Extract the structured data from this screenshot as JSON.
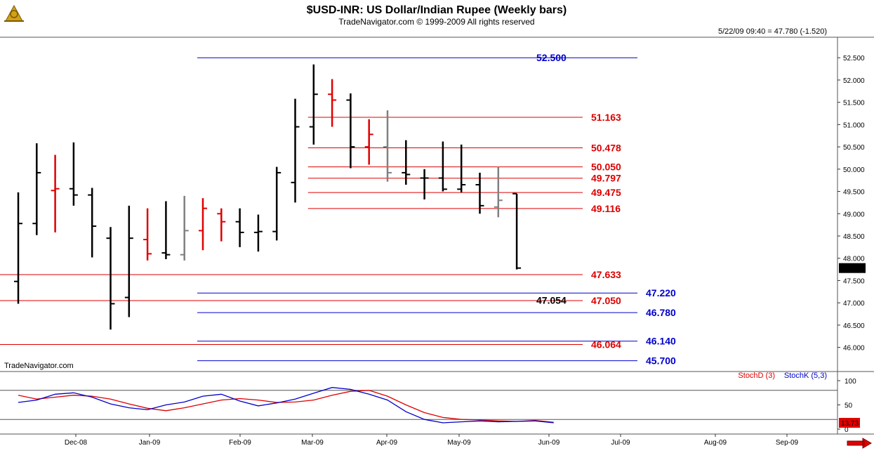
{
  "header": {
    "title": "$USD-INR:  US Dollar/Indian Rupee  (Weekly bars)",
    "subtitle": "TradeNavigator.com © 1999-2009 All rights reserved",
    "last_quote": "5/22/09 09:40 = 47.780 (-1.520)",
    "watermark": "TradeNavigator.com"
  },
  "footer": {
    "arrow_icon": "right-arrow-icon"
  },
  "chart_data": [
    {
      "type": "ohlc",
      "title": "$USD-INR:  US Dollar/Indian Rupee  (Weekly bars)",
      "ylim": [
        45.6,
        52.85
      ],
      "yticks": [
        "52.500",
        "52.000",
        "51.500",
        "51.000",
        "50.500",
        "50.000",
        "49.500",
        "49.000",
        "48.500",
        "48.000",
        "47.500",
        "47.000",
        "46.500",
        "46.000"
      ],
      "last_price_label": "47.780",
      "colors": {
        "down": "#000000",
        "up": "#e00000",
        "neutral": "#808080"
      },
      "bars": [
        {
          "h": 49.48,
          "l": 46.98,
          "o": 47.48,
          "c": 48.78,
          "color": "black"
        },
        {
          "h": 50.58,
          "l": 48.52,
          "o": 48.78,
          "c": 49.92,
          "color": "black"
        },
        {
          "h": 50.32,
          "l": 48.58,
          "o": 49.52,
          "c": 49.56,
          "color": "red"
        },
        {
          "h": 50.6,
          "l": 49.18,
          "o": 49.56,
          "c": 49.42,
          "color": "black"
        },
        {
          "h": 49.58,
          "l": 48.02,
          "o": 49.42,
          "c": 48.72,
          "color": "black"
        },
        {
          "h": 48.7,
          "l": 46.4,
          "o": 48.45,
          "c": 46.98,
          "color": "black"
        },
        {
          "h": 49.18,
          "l": 46.68,
          "o": 47.12,
          "c": 48.45,
          "color": "black"
        },
        {
          "h": 49.12,
          "l": 47.95,
          "o": 48.42,
          "c": 48.1,
          "color": "red"
        },
        {
          "h": 49.28,
          "l": 47.98,
          "o": 48.12,
          "c": 48.08,
          "color": "black"
        },
        {
          "h": 49.4,
          "l": 47.95,
          "o": 48.08,
          "c": 48.62,
          "color": "gray"
        },
        {
          "h": 49.35,
          "l": 48.18,
          "o": 48.62,
          "c": 49.12,
          "color": "red"
        },
        {
          "h": 49.12,
          "l": 48.38,
          "o": 49.0,
          "c": 48.82,
          "color": "red"
        },
        {
          "h": 49.12,
          "l": 48.25,
          "o": 48.82,
          "c": 48.58,
          "color": "black"
        },
        {
          "h": 48.98,
          "l": 48.15,
          "o": 48.58,
          "c": 48.6,
          "color": "black"
        },
        {
          "h": 50.05,
          "l": 48.4,
          "o": 48.6,
          "c": 49.92,
          "color": "black"
        },
        {
          "h": 51.58,
          "l": 49.25,
          "o": 49.7,
          "c": 50.95,
          "color": "black"
        },
        {
          "h": 52.35,
          "l": 50.55,
          "o": 50.95,
          "c": 51.68,
          "color": "black"
        },
        {
          "h": 52.02,
          "l": 50.95,
          "o": 51.68,
          "c": 51.55,
          "color": "red"
        },
        {
          "h": 51.7,
          "l": 50.02,
          "o": 51.55,
          "c": 50.5,
          "color": "black"
        },
        {
          "h": 51.12,
          "l": 50.1,
          "o": 50.5,
          "c": 50.78,
          "color": "red"
        },
        {
          "h": 51.32,
          "l": 49.72,
          "o": 50.5,
          "c": 49.92,
          "color": "gray"
        },
        {
          "h": 50.65,
          "l": 49.65,
          "o": 49.92,
          "c": 49.88,
          "color": "black"
        },
        {
          "h": 50.0,
          "l": 49.32,
          "o": 49.8,
          "c": 49.8,
          "color": "black"
        },
        {
          "h": 50.62,
          "l": 49.5,
          "o": 49.8,
          "c": 49.55,
          "color": "black"
        },
        {
          "h": 50.55,
          "l": 49.48,
          "o": 49.55,
          "c": 49.65,
          "color": "black"
        },
        {
          "h": 49.92,
          "l": 49.0,
          "o": 49.65,
          "c": 49.18,
          "color": "black"
        },
        {
          "h": 50.05,
          "l": 48.92,
          "o": 49.15,
          "c": 49.3,
          "color": "gray"
        },
        {
          "h": 49.45,
          "l": 47.75,
          "o": 49.45,
          "c": 47.78,
          "color": "black"
        }
      ],
      "levels": [
        {
          "value": 52.5,
          "label": "52.500",
          "color": "#0000cc",
          "start_bar": 10
        },
        {
          "value": 51.163,
          "label": "51.163",
          "color": "#dd0000",
          "start_bar": 16
        },
        {
          "value": 50.478,
          "label": "50.478",
          "color": "#dd0000",
          "start_bar": 16
        },
        {
          "value": 50.05,
          "label": "50.050",
          "color": "#dd0000",
          "start_bar": 16
        },
        {
          "value": 49.797,
          "label": "49.797",
          "color": "#dd0000",
          "start_bar": 16
        },
        {
          "value": 49.475,
          "label": "49.475",
          "color": "#dd0000",
          "start_bar": 16
        },
        {
          "value": 49.116,
          "label": "49.116",
          "color": "#dd0000",
          "start_bar": 16
        },
        {
          "value": 47.633,
          "label": "47.633",
          "color": "#dd0000",
          "start_bar": -1
        },
        {
          "value": 47.22,
          "label": "47.220",
          "color": "#0000cc",
          "start_bar": 10
        },
        {
          "value": 47.05,
          "label": "47.050",
          "color": "#dd0000",
          "start_bar": -1
        },
        {
          "value": 46.78,
          "label": "46.780",
          "color": "#0000cc",
          "start_bar": 10
        },
        {
          "value": 46.14,
          "label": "46.140",
          "color": "#0000cc",
          "start_bar": 10
        },
        {
          "value": 46.064,
          "label": "46.064",
          "color": "#dd0000",
          "start_bar": -1
        },
        {
          "value": 45.7,
          "label": "45.700",
          "color": "#0000cc",
          "start_bar": 10
        }
      ],
      "annotation": {
        "text": "47.054",
        "value": 47.054,
        "bar": 26
      }
    },
    {
      "type": "line",
      "ylim": [
        0,
        100
      ],
      "yticks": [
        "100",
        "50",
        "0"
      ],
      "reference_lines": [
        80,
        20
      ],
      "last_value_label": "13.73",
      "series": [
        {
          "name": "StochD (3)",
          "color": "#dd0000",
          "values": [
            70,
            62,
            66,
            70,
            68,
            62,
            52,
            43,
            38,
            44,
            52,
            60,
            63,
            60,
            55,
            56,
            60,
            70,
            78,
            80,
            68,
            50,
            34,
            24,
            20,
            19,
            17,
            16,
            18,
            14
          ]
        },
        {
          "name": "StochK (5,3)",
          "color": "#0000cc",
          "values": [
            55,
            60,
            72,
            75,
            66,
            52,
            44,
            40,
            50,
            56,
            68,
            72,
            58,
            48,
            54,
            62,
            74,
            86,
            82,
            72,
            60,
            36,
            20,
            13,
            15,
            17,
            15,
            16,
            17,
            13
          ]
        }
      ],
      "x_labels": [
        "Dec-08",
        "Jan-09",
        "Feb-09",
        "Mar-09",
        "Apr-09",
        "May-09",
        "Jun-09",
        "Jul-09",
        "Aug-09",
        "Sep-09"
      ]
    }
  ]
}
